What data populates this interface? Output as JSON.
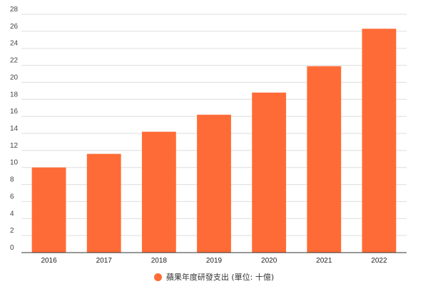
{
  "chart_data": {
    "type": "bar",
    "categories": [
      "2016",
      "2017",
      "2018",
      "2019",
      "2020",
      "2021",
      "2022"
    ],
    "series": [
      {
        "name": "蘋果年度研發支出 (單位: 十億)",
        "values": [
          10.0,
          11.6,
          14.2,
          16.2,
          18.8,
          21.9,
          26.3
        ],
        "color": "#FF6B36"
      }
    ],
    "ylim": [
      0,
      28
    ],
    "y_ticks": [
      0,
      2,
      4,
      6,
      8,
      10,
      12,
      14,
      16,
      18,
      20,
      22,
      24,
      26,
      28
    ],
    "grid": true,
    "legend_position": "bottom"
  },
  "legend": {
    "label": "蘋果年度研發支出 (單位: 十億)",
    "color": "#FF6B36"
  }
}
